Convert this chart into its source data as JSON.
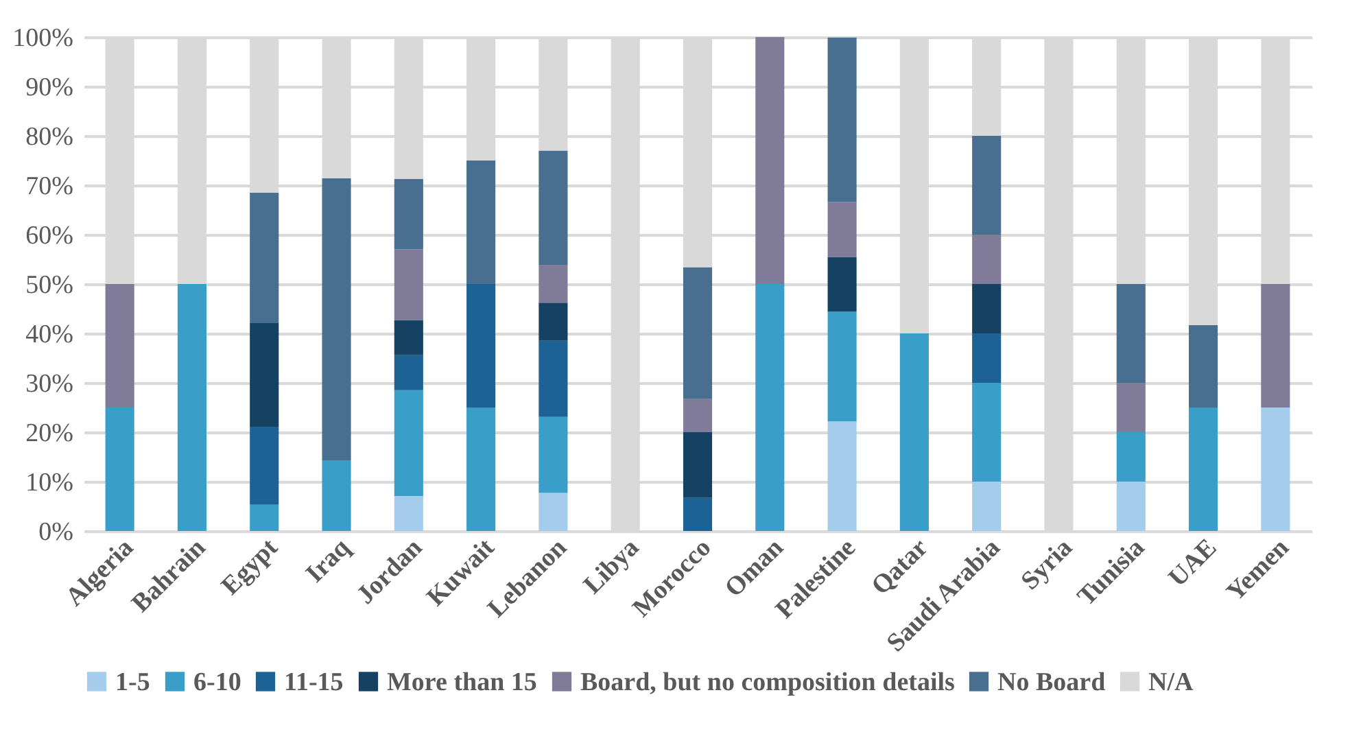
{
  "chart_data": {
    "type": "bar",
    "stacked": true,
    "categories": [
      "Algeria",
      "Bahrain",
      "Egypt",
      "Iraq",
      "Jordan",
      "Kuwait",
      "Lebanon",
      "Libya",
      "Morocco",
      "Oman",
      "Palestine",
      "Qatar",
      "Saudi Arabia",
      "Syria",
      "Tunisia",
      "UAE",
      "Yemen"
    ],
    "series": [
      {
        "name": "1-5",
        "color": "#a4cdeb",
        "values": [
          0,
          0,
          0,
          0,
          7.1,
          0,
          7.7,
          0,
          0,
          0,
          22.2,
          0,
          10,
          0,
          10,
          0,
          25
        ]
      },
      {
        "name": "6-10",
        "color": "#3a9fc8",
        "values": [
          25,
          50,
          5.3,
          14.3,
          21.4,
          25,
          15.4,
          0,
          0,
          50,
          22.2,
          40,
          20,
          0,
          10,
          25,
          0
        ]
      },
      {
        "name": "11-15",
        "color": "#1d6295",
        "values": [
          0,
          0,
          15.8,
          0,
          7.1,
          25,
          15.4,
          0,
          6.7,
          0,
          0,
          0,
          10,
          0,
          0,
          0,
          0
        ]
      },
      {
        "name": "More than 15",
        "color": "#154263",
        "values": [
          0,
          0,
          21.1,
          0,
          7.1,
          0,
          7.7,
          0,
          13.3,
          0,
          11.1,
          0,
          10,
          0,
          0,
          0,
          0
        ]
      },
      {
        "name": "Board, but no composition details",
        "color": "#7f7b99",
        "values": [
          25,
          0,
          0,
          0,
          14.3,
          0,
          7.7,
          0,
          6.7,
          50,
          11.1,
          0,
          10,
          0,
          10,
          0,
          25
        ]
      },
      {
        "name": "No Board",
        "color": "#486f8f",
        "values": [
          0,
          0,
          26.3,
          57.1,
          14.3,
          25,
          23.1,
          0,
          26.7,
          0,
          33.3,
          0,
          20,
          0,
          20,
          16.7,
          0
        ]
      },
      {
        "name": "N/A",
        "color": "#d9d9d9",
        "values": [
          50,
          50,
          31.6,
          28.6,
          28.6,
          25,
          23.1,
          100,
          46.7,
          0,
          0,
          60,
          20,
          100,
          50,
          58.3,
          50
        ]
      }
    ],
    "ylim": [
      0,
      100
    ],
    "yticks": [
      {
        "value": 0,
        "label": "0%"
      },
      {
        "value": 10,
        "label": "10%"
      },
      {
        "value": 20,
        "label": "20%"
      },
      {
        "value": 30,
        "label": "30%"
      },
      {
        "value": 40,
        "label": "40%"
      },
      {
        "value": 50,
        "label": "50%"
      },
      {
        "value": 60,
        "label": "60%"
      },
      {
        "value": 70,
        "label": "70%"
      },
      {
        "value": 80,
        "label": "80%"
      },
      {
        "value": 90,
        "label": "90%"
      },
      {
        "value": 100,
        "label": "100%"
      }
    ],
    "grid": "y",
    "legend": "bottom"
  }
}
